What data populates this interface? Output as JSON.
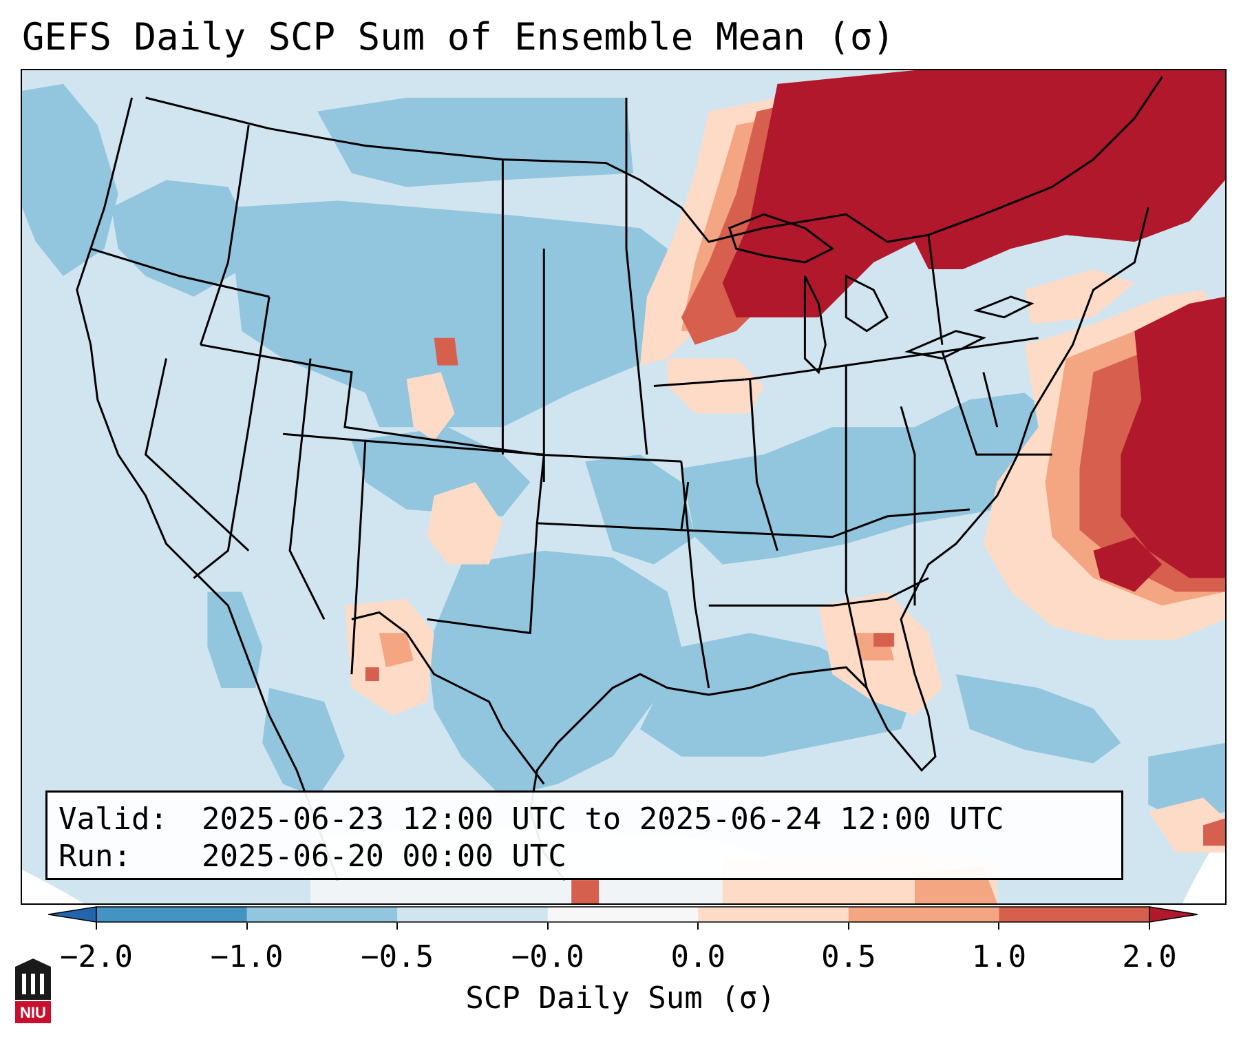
{
  "title": "GEFS Daily SCP Sum of Ensemble Mean (σ)",
  "info": {
    "valid_label": "Valid:",
    "valid_value": "2025-06-23 12:00 UTC to 2025-06-24 12:00 UTC",
    "run_label": "Run:",
    "run_value": "2025-06-20 00:00 UTC"
  },
  "colorbar": {
    "label": "SCP Daily Sum (σ)",
    "ticks": [
      "−2.0",
      "−1.0",
      "−0.5",
      "−0.0",
      "0.0",
      "0.5",
      "1.0",
      "2.0"
    ],
    "colors": [
      "#4393c3",
      "#92c5de",
      "#d1e5f0",
      "#f7f7f7",
      "#fddbc7",
      "#f4a582",
      "#d6604d"
    ],
    "extend_low": "#2166ac",
    "extend_high": "#b2182b"
  },
  "logo": {
    "text": "NIU",
    "color": "#c8102e"
  }
}
